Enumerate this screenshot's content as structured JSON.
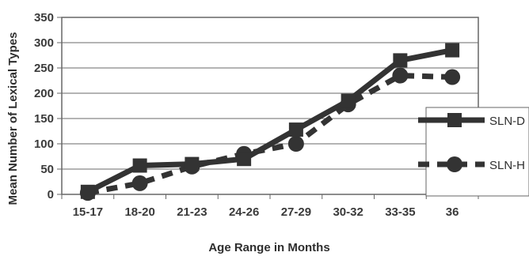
{
  "chart_data": {
    "type": "line",
    "categories": [
      "15-17",
      "18-20",
      "21-23",
      "24-26",
      "27-29",
      "30-32",
      "33-35",
      "36"
    ],
    "series": [
      {
        "name": "SLN-D",
        "values": [
          5,
          57,
          60,
          70,
          128,
          185,
          265,
          285
        ],
        "line": "solid",
        "marker": "square"
      },
      {
        "name": "SLN-H",
        "values": [
          3,
          22,
          55,
          80,
          100,
          178,
          235,
          232
        ],
        "line": "dashed",
        "marker": "circle"
      }
    ],
    "ylim": [
      0,
      350
    ],
    "yticks": [
      0,
      50,
      100,
      150,
      200,
      250,
      300,
      350
    ],
    "xlabel": "Age Range in Months",
    "ylabel": "Mean Number of Lexical Types",
    "grid": true,
    "legend": "right",
    "colors": {
      "line": "#333333",
      "plot_bg": "#ffffff",
      "frame": "#666666",
      "grid": "#6a6a6a"
    }
  }
}
